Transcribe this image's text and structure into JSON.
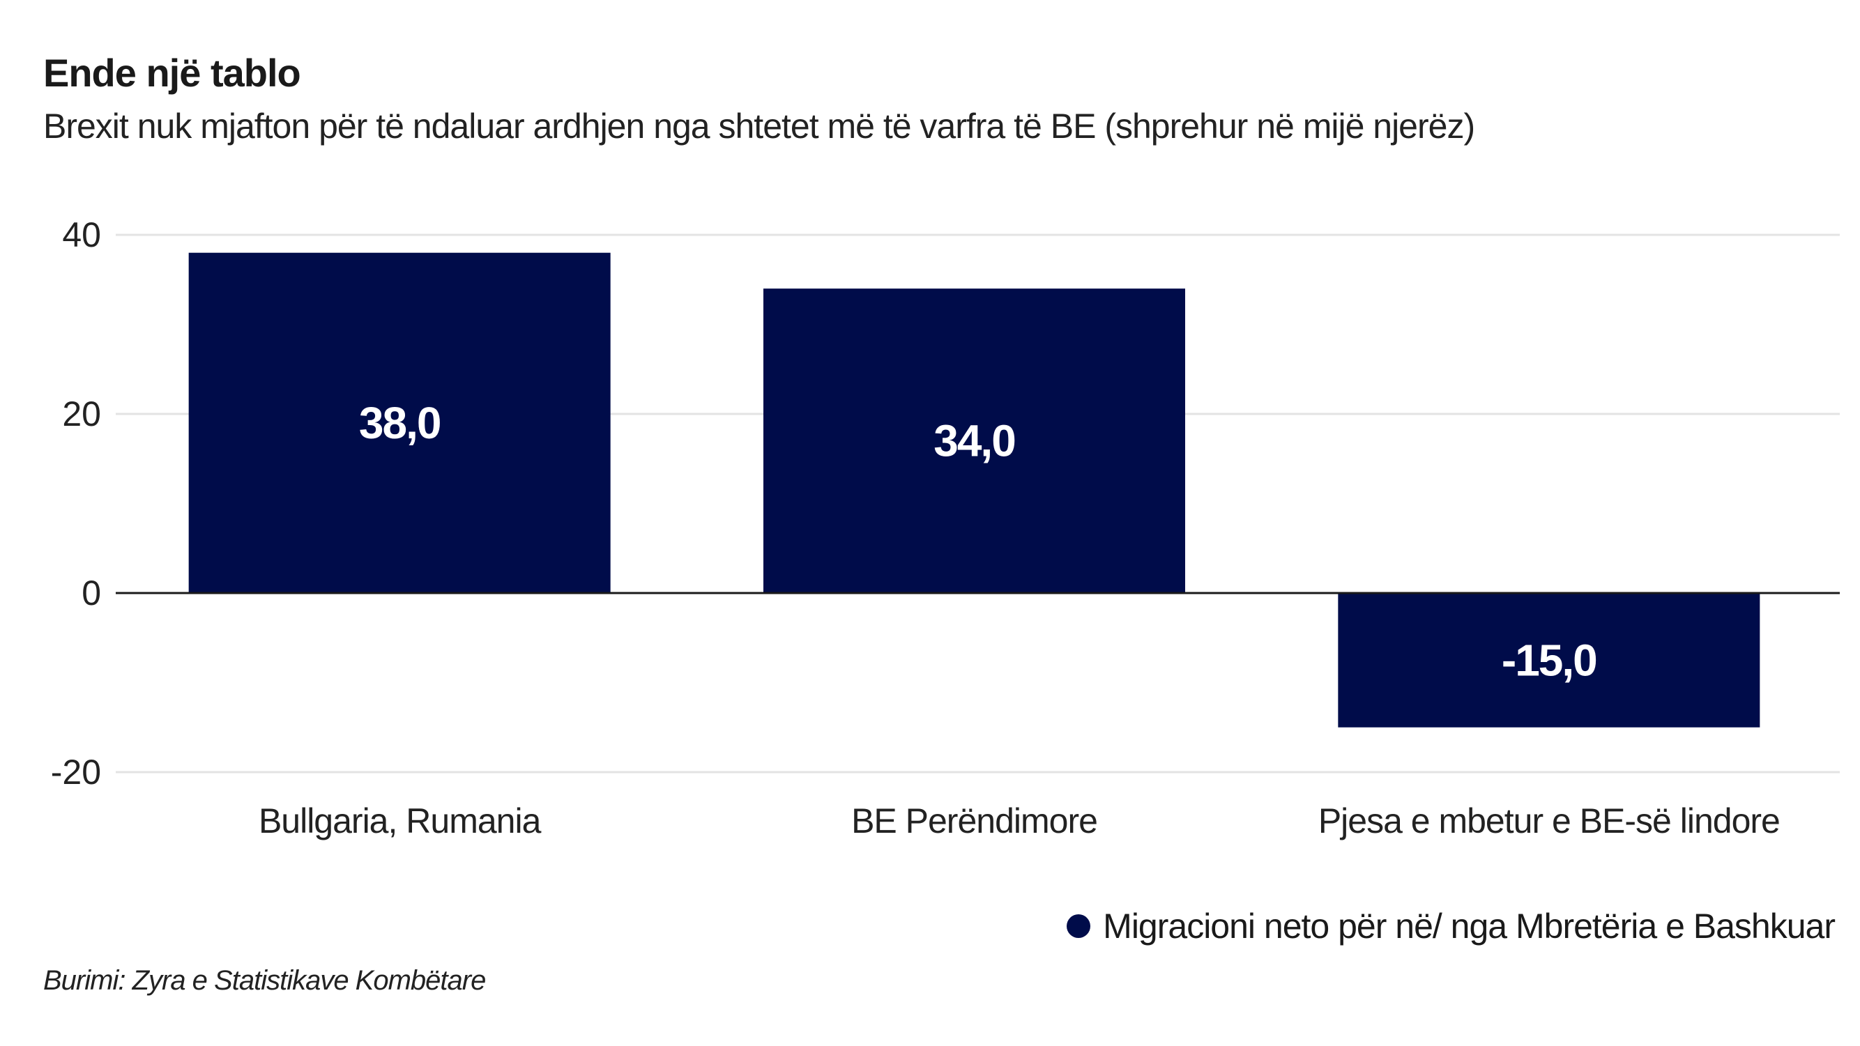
{
  "chart_data": {
    "type": "bar",
    "title": "Ende një tablo",
    "subtitle": "Brexit nuk mjafton për të ndaluar ardhjen nga shtetet më të varfra të BE (shprehur në mijë njerëz)",
    "categories": [
      "Bullgaria, Rumania",
      "BE Perëndimore",
      "Pjesa e mbetur e BE-së lindore"
    ],
    "series": [
      {
        "name": "Migracioni neto për në/ nga Mbretëria e Bashkuar",
        "values": [
          38.0,
          34.0,
          -15.0
        ],
        "color": "#000c4a"
      }
    ],
    "data_labels": [
      "38,0",
      "34,0",
      "-15,0"
    ],
    "yticks": [
      40,
      20,
      0,
      -20
    ],
    "ylim": [
      -20,
      40
    ],
    "xlabel": "",
    "ylabel": "",
    "grid": true,
    "legend_position": "bottom-right",
    "source": "Burimi: Zyra e Statistikave Kombëtare"
  }
}
